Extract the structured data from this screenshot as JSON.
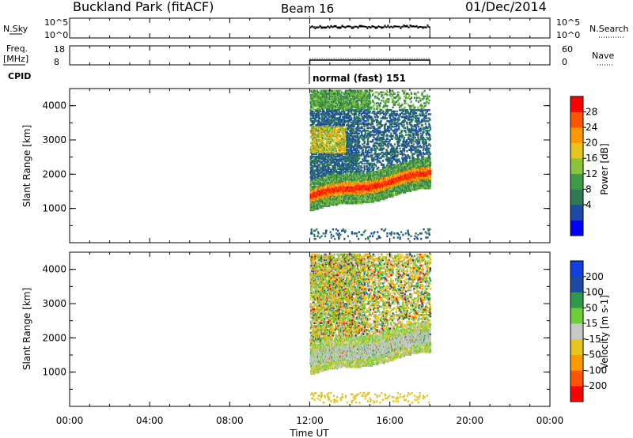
{
  "header": {
    "station": "Buckland Park (fitACF)",
    "beam": "Beam 16",
    "date": "01/Dec/2014"
  },
  "strips": {
    "nsky_label": "N.Sky",
    "nsky_ticks": [
      "10^5",
      "10^0"
    ],
    "nsearch_label": "N.Search",
    "freq_label_1": "Freq.",
    "freq_label_2": "[MHz]",
    "freq_ticks": [
      "18",
      "8"
    ],
    "nave_ticks": [
      "60",
      "0"
    ],
    "nave_label": "Nave",
    "cpid_label": "CPID",
    "cpid_value": "normal (fast) 151"
  },
  "colors": {
    "power": [
      "#0000ff",
      "#1c4aa6",
      "#2f7a52",
      "#3f9c45",
      "#8ac43a",
      "#e6c61c",
      "#ff9900",
      "#ff5500",
      "#ff0000"
    ],
    "velocity": [
      "#ff0000",
      "#ff5500",
      "#ff9900",
      "#e6c61c",
      "#c8c8c8",
      "#6ccf3a",
      "#2f9a4a",
      "#1c4aa6",
      "#1040e0"
    ]
  },
  "chart_data": [
    {
      "type": "heatmap",
      "panel": "power",
      "ylabel": "Slant Range [km]",
      "colorbar_label": "Power [dB]",
      "colorbar_ticks": [
        "28",
        "24",
        "20",
        "16",
        "12",
        "8",
        "4"
      ],
      "ylim": [
        0,
        4500
      ],
      "yticks": [
        "4000",
        "3000",
        "2000",
        "1000"
      ],
      "data_time_range": [
        "12:00",
        "18:00"
      ]
    },
    {
      "type": "heatmap",
      "panel": "velocity",
      "ylabel": "Slant Range [km]",
      "colorbar_label": "Velocity [m s-1]",
      "colorbar_ticks": [
        "200",
        "100",
        "50",
        "15",
        "-15",
        "-50",
        "-100",
        "-200"
      ],
      "ylim": [
        0,
        4500
      ],
      "yticks": [
        "4000",
        "3000",
        "2000",
        "1000"
      ],
      "data_time_range": [
        "12:00",
        "18:00"
      ]
    }
  ],
  "xaxis": {
    "ticks": [
      "00:00",
      "04:00",
      "08:00",
      "12:00",
      "16:00",
      "20:00",
      "00:00"
    ],
    "label": "Time UT"
  }
}
